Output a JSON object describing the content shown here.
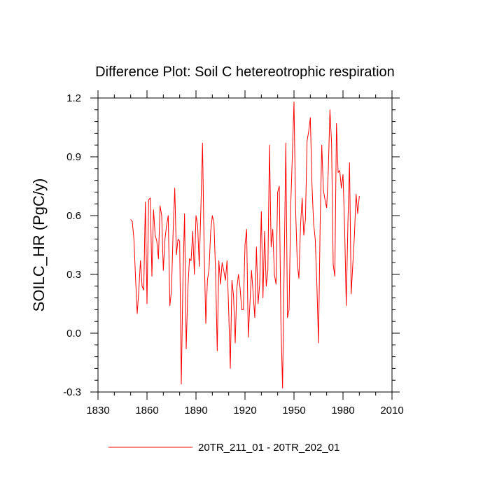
{
  "chart_data": {
    "type": "line",
    "title": "Difference Plot: Soil C hetereotrophic respiration",
    "xlabel": "",
    "ylabel": "SOILC_HR  (PgC/y)",
    "xlim": [
      1830,
      2010
    ],
    "ylim": [
      -0.3,
      1.2
    ],
    "xticks": [
      1830,
      1860,
      1890,
      1920,
      1950,
      1980,
      2010
    ],
    "xtick_labels": [
      "1830",
      "1860",
      "1890",
      "1920",
      "1950",
      "1980",
      "2010"
    ],
    "yticks": [
      -0.3,
      0.0,
      0.3,
      0.6,
      0.9,
      1.2
    ],
    "ytick_labels": [
      "-0.3",
      "0.0",
      "0.3",
      "0.6",
      "0.9",
      "1.2"
    ],
    "grid": false,
    "legend_position": "bottom",
    "line_color": "#ff0000",
    "series": [
      {
        "name": "20TR_211_01 - 20TR_202_01",
        "x": [
          1850,
          1851,
          1852,
          1853,
          1854,
          1855,
          1856,
          1857,
          1858,
          1859,
          1860,
          1861,
          1862,
          1863,
          1864,
          1865,
          1866,
          1867,
          1868,
          1869,
          1870,
          1871,
          1872,
          1873,
          1874,
          1875,
          1876,
          1877,
          1878,
          1879,
          1880,
          1881,
          1882,
          1883,
          1884,
          1885,
          1886,
          1887,
          1888,
          1889,
          1890,
          1891,
          1892,
          1893,
          1894,
          1895,
          1896,
          1897,
          1898,
          1899,
          1900,
          1901,
          1902,
          1903,
          1904,
          1905,
          1906,
          1907,
          1908,
          1909,
          1910,
          1911,
          1912,
          1913,
          1914,
          1915,
          1916,
          1917,
          1918,
          1919,
          1920,
          1921,
          1922,
          1923,
          1924,
          1925,
          1926,
          1927,
          1928,
          1929,
          1930,
          1931,
          1932,
          1933,
          1934,
          1935,
          1936,
          1937,
          1938,
          1939,
          1940,
          1941,
          1942,
          1943,
          1944,
          1945,
          1946,
          1947,
          1948,
          1949,
          1950,
          1951,
          1952,
          1953,
          1954,
          1955,
          1956,
          1957,
          1958,
          1959,
          1960,
          1961,
          1962,
          1963,
          1964,
          1965,
          1966,
          1967,
          1968,
          1969,
          1970,
          1971,
          1972,
          1973,
          1974,
          1975,
          1976,
          1977,
          1978,
          1979,
          1980,
          1981,
          1982,
          1983,
          1984,
          1985,
          1986,
          1987,
          1988,
          1989,
          1990
        ],
        "values": [
          0.58,
          0.57,
          0.48,
          0.28,
          0.1,
          0.22,
          0.37,
          0.24,
          0.22,
          0.67,
          0.15,
          0.68,
          0.69,
          0.29,
          0.63,
          0.5,
          0.47,
          0.38,
          0.65,
          0.6,
          0.32,
          0.48,
          0.55,
          0.6,
          0.14,
          0.22,
          0.52,
          0.74,
          0.4,
          0.48,
          0.47,
          -0.26,
          0.27,
          0.61,
          -0.08,
          0.22,
          0.38,
          0.37,
          0.52,
          0.3,
          0.6,
          0.55,
          0.34,
          0.64,
          0.97,
          0.42,
          0.05,
          0.27,
          0.33,
          0.52,
          0.6,
          0.56,
          0.31,
          -0.09,
          0.37,
          0.25,
          0.36,
          0.32,
          0.27,
          0.37,
          0.12,
          -0.18,
          0.27,
          0.19,
          -0.05,
          0.23,
          0.3,
          0.23,
          0.12,
          0.12,
          0.45,
          0.53,
          -0.02,
          0.15,
          0.32,
          0.2,
          0.08,
          0.44,
          0.15,
          0.25,
          0.62,
          0.18,
          0.52,
          0.24,
          0.32,
          0.96,
          0.44,
          0.53,
          0.3,
          0.25,
          0.72,
          0.75,
          0.05,
          -0.28,
          0.35,
          0.97,
          0.08,
          0.12,
          0.65,
          0.91,
          1.18,
          0.63,
          0.36,
          0.28,
          0.55,
          0.69,
          0.5,
          0.58,
          0.98,
          1.03,
          1.1,
          0.76,
          0.56,
          0.48,
          0.25,
          -0.05,
          0.55,
          0.96,
          0.73,
          0.68,
          0.64,
          0.83,
          1.14,
          0.97,
          0.35,
          0.29,
          1.07,
          0.82,
          0.83,
          0.74,
          0.81,
          0.54,
          0.14,
          0.56,
          0.87,
          0.2,
          0.35,
          0.5,
          0.71,
          0.61,
          0.7
        ]
      }
    ]
  }
}
